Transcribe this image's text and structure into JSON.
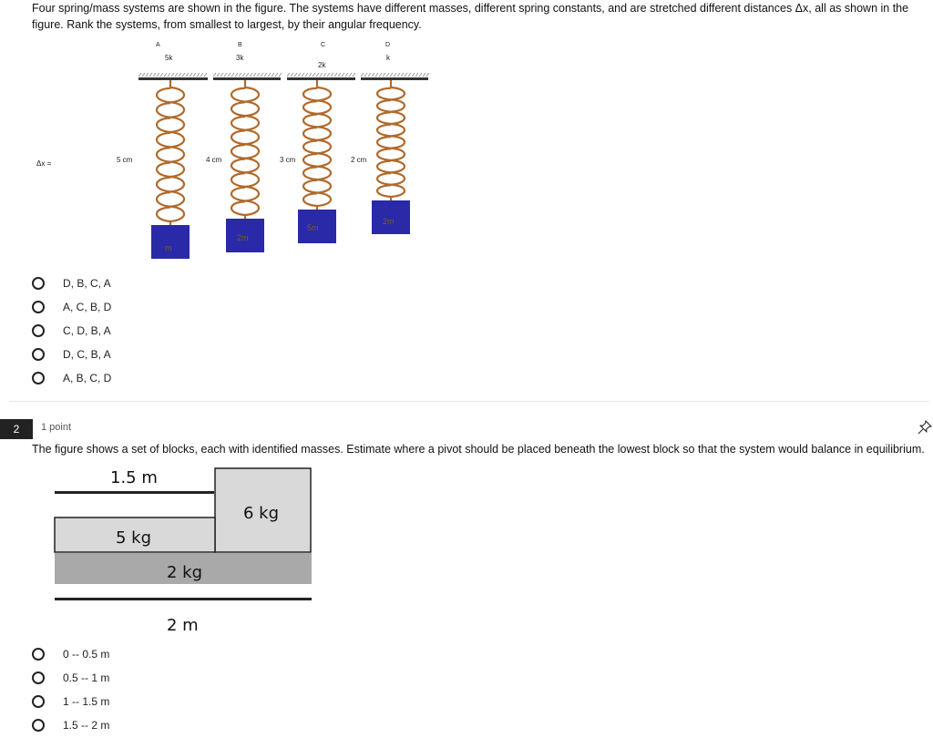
{
  "question1": {
    "text": "Four spring/mass systems are shown in the figure. The systems have different masses, different spring constants, and are stretched different distances Δx, all as shown in the figure. Rank the systems, from smallest to largest, by their angular frequency.",
    "figure": {
      "dx_label": "Δx =",
      "systems": [
        {
          "letter": "A",
          "k": "5k",
          "dx": "5 cm",
          "mass": "m"
        },
        {
          "letter": "B",
          "k": "3k",
          "dx": "4 cm",
          "mass": "2m"
        },
        {
          "letter": "C",
          "k": "2k",
          "dx": "3 cm",
          "mass": "5m"
        },
        {
          "letter": "D",
          "k": "k",
          "dx": "2 cm",
          "mass": "2m"
        }
      ],
      "colors": {
        "spring": "#b06a2c",
        "block": "#2a2aa8",
        "block_text": "#7a5a2a",
        "ceiling": "#333333"
      }
    },
    "options": [
      "D, B, C, A",
      "A, C, B, D",
      "C, D, B, A",
      "D, C, B, A",
      "A, B, C, D"
    ]
  },
  "question2": {
    "number": "2",
    "points": "1 point",
    "pin_icon": "pin-icon",
    "text": "The figure shows a set of blocks, each with identified masses. Estimate where a pivot should be placed beneath the lowest block so that the system would balance in equilibrium.",
    "figure": {
      "top_length": "1.5 m",
      "bottom_length": "2 m",
      "block_top_right": "6 kg",
      "block_middle_left": "5 kg",
      "block_bottom": "2 kg",
      "colors": {
        "light_block": "#d9d9d9",
        "dark_block": "#a9a9a9",
        "line": "#222222"
      }
    },
    "options": [
      "0 -- 0.5 m",
      "0.5 -- 1 m",
      "1 -- 1.5 m",
      "1.5 -- 2 m"
    ]
  }
}
